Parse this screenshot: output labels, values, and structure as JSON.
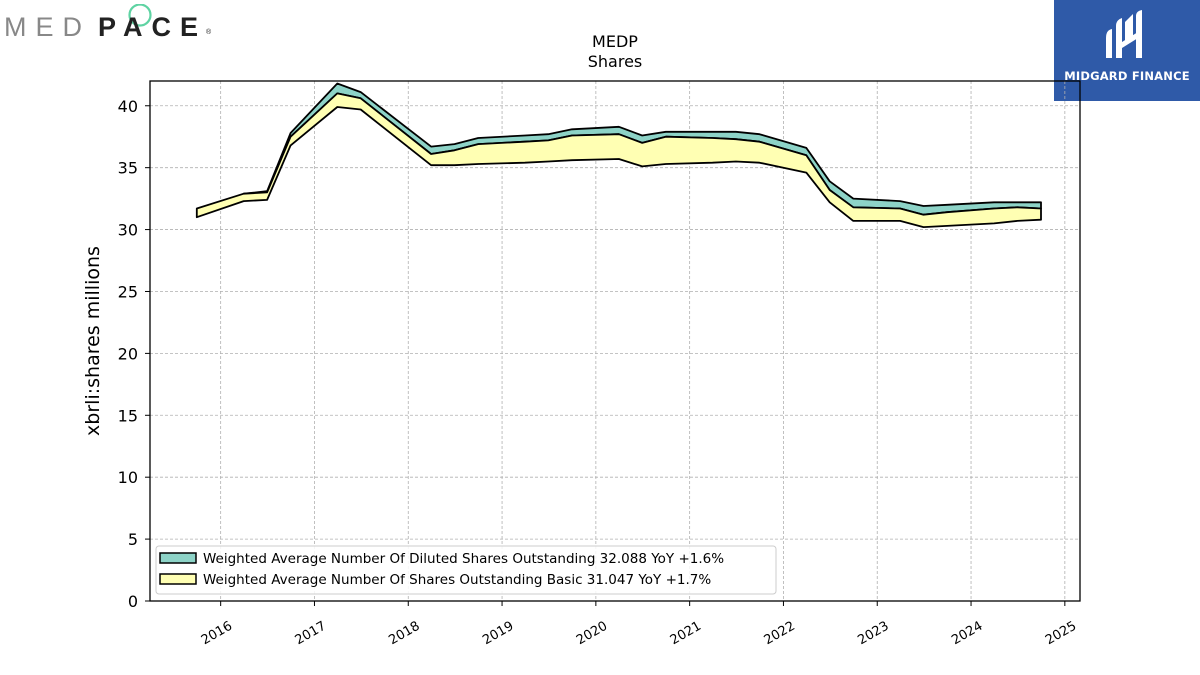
{
  "logos": {
    "left": {
      "text_light": "MED",
      "text_dark": "PACE",
      "reg": "®",
      "ring_color": "#5fd3a3"
    },
    "right": {
      "text": "MIDGARD FINANCE",
      "bg_color": "#2f5aa8"
    }
  },
  "chart_data": {
    "type": "area",
    "title": "MEDP",
    "subtitle": "Shares",
    "xlabel": "",
    "ylabel": "xbrli:shares millions",
    "xlim": [
      "2015-04-01",
      "2025-03-01"
    ],
    "ylim": [
      0,
      42
    ],
    "yticks": [
      0,
      5,
      10,
      15,
      20,
      25,
      30,
      35,
      40
    ],
    "xticks": [
      "2016",
      "2017",
      "2018",
      "2019",
      "2020",
      "2021",
      "2022",
      "2023",
      "2024",
      "2025"
    ],
    "grid": true,
    "legend_position": "lower-left",
    "series": [
      {
        "name": "Weighted Average Number Of Diluted Shares Outstanding",
        "legend_label": "Weighted Average Number Of Diluted Shares Outstanding  32.088 YoY +1.6%",
        "color": "#8dd3c7",
        "x": [
          "2016-03-31",
          "2016-06-30",
          "2016-09-30",
          "2017-03-31",
          "2017-06-30",
          "2018-03-31",
          "2018-06-30",
          "2018-09-30",
          "2019-03-31",
          "2019-06-30",
          "2019-09-30",
          "2020-03-31",
          "2020-06-30",
          "2020-09-30",
          "2021-03-31",
          "2021-06-30",
          "2021-09-30",
          "2022-03-31",
          "2022-06-30",
          "2022-09-30",
          "2023-03-31",
          "2023-06-30",
          "2023-09-30",
          "2024-03-31",
          "2024-06-30",
          "2024-09-30"
        ],
        "lower": [
          32.9,
          33.0,
          37.5,
          41.0,
          40.6,
          36.1,
          36.4,
          36.9,
          37.1,
          37.2,
          37.6,
          37.7,
          37.0,
          37.5,
          37.4,
          37.3,
          37.1,
          36.0,
          33.2,
          31.8,
          31.7,
          31.2,
          31.4,
          31.7,
          31.8,
          31.7
        ],
        "upper": [
          32.9,
          33.1,
          37.8,
          41.8,
          41.1,
          36.7,
          36.9,
          37.4,
          37.6,
          37.7,
          38.1,
          38.3,
          37.6,
          37.9,
          37.9,
          37.9,
          37.7,
          36.6,
          33.9,
          32.5,
          32.3,
          31.9,
          32.0,
          32.2,
          32.2,
          32.2
        ]
      },
      {
        "name": "Weighted Average Number Of Shares Outstanding Basic",
        "legend_label": "Weighted Average Number Of Shares Outstanding Basic  31.047 YoY +1.7%",
        "color": "#ffffb3",
        "x": [
          "2015-09-30",
          "2016-03-31",
          "2016-06-30",
          "2016-09-30",
          "2017-03-31",
          "2017-06-30",
          "2018-03-31",
          "2018-06-30",
          "2018-09-30",
          "2019-03-31",
          "2019-06-30",
          "2019-09-30",
          "2020-03-31",
          "2020-06-30",
          "2020-09-30",
          "2021-03-31",
          "2021-06-30",
          "2021-09-30",
          "2022-03-31",
          "2022-06-30",
          "2022-09-30",
          "2023-03-31",
          "2023-06-30",
          "2023-09-30",
          "2024-03-31",
          "2024-06-30",
          "2024-09-30"
        ],
        "lower": [
          31.0,
          32.3,
          32.4,
          36.8,
          39.9,
          39.7,
          35.2,
          35.2,
          35.3,
          35.4,
          35.5,
          35.6,
          35.7,
          35.1,
          35.3,
          35.4,
          35.5,
          35.4,
          34.6,
          32.2,
          30.7,
          30.7,
          30.2,
          30.3,
          30.5,
          30.7,
          30.8
        ],
        "upper": [
          31.7,
          32.9,
          33.0,
          37.5,
          41.0,
          40.6,
          36.1,
          36.4,
          36.9,
          37.1,
          37.2,
          37.6,
          37.7,
          37.0,
          37.5,
          37.4,
          37.3,
          37.1,
          36.0,
          33.2,
          31.8,
          31.7,
          31.2,
          31.4,
          31.7,
          31.8,
          31.7
        ]
      }
    ]
  }
}
